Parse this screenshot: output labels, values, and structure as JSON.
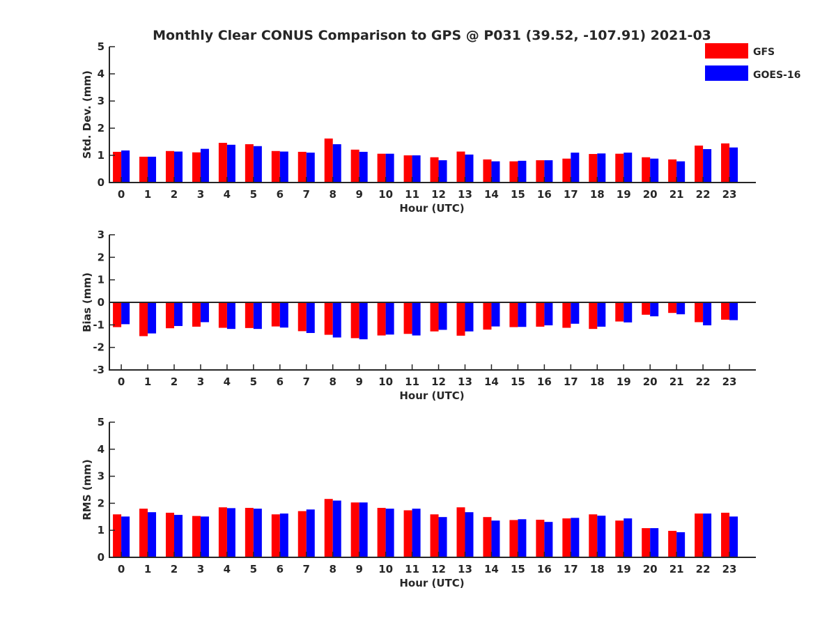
{
  "title": "Monthly Clear CONUS Comparison to GPS @ P031 (39.52, -107.91) 2021-03",
  "legend": [
    {
      "name": "GFS",
      "color": "#ff0000"
    },
    {
      "name": "GOES-16",
      "color": "#0000ff"
    }
  ],
  "colors": {
    "gfs": "#ff0000",
    "goes16": "#0000ff",
    "axis": "#262626"
  },
  "chart_data": [
    {
      "type": "bar",
      "ylabel": "Std. Dev. (mm)",
      "xlabel": "Hour (UTC)",
      "ylim": [
        0,
        5
      ],
      "yticks": [
        0,
        1,
        2,
        3,
        4,
        5
      ],
      "zero_line": false,
      "legend": "top-right",
      "categories": [
        "0",
        "1",
        "2",
        "3",
        "4",
        "5",
        "6",
        "7",
        "8",
        "9",
        "10",
        "11",
        "12",
        "13",
        "14",
        "15",
        "16",
        "17",
        "18",
        "19",
        "20",
        "21",
        "22",
        "23"
      ],
      "series": [
        {
          "name": "GFS",
          "values": [
            1.13,
            0.95,
            1.16,
            1.11,
            1.46,
            1.41,
            1.16,
            1.13,
            1.62,
            1.21,
            1.06,
            1.0,
            0.93,
            1.14,
            0.85,
            0.78,
            0.82,
            0.88,
            1.05,
            1.06,
            0.93,
            0.85,
            1.36,
            1.44
          ]
        },
        {
          "name": "GOES-16",
          "values": [
            1.18,
            0.95,
            1.14,
            1.24,
            1.39,
            1.34,
            1.14,
            1.1,
            1.41,
            1.13,
            1.06,
            1.0,
            0.82,
            1.03,
            0.78,
            0.8,
            0.82,
            1.1,
            1.07,
            1.1,
            0.88,
            0.78,
            1.23,
            1.29
          ]
        }
      ]
    },
    {
      "type": "bar",
      "ylabel": "Bias (mm)",
      "xlabel": "Hour (UTC)",
      "ylim": [
        -3,
        3
      ],
      "yticks": [
        -3,
        -2,
        -1,
        0,
        1,
        2,
        3
      ],
      "zero_line": true,
      "categories": [
        "0",
        "1",
        "2",
        "3",
        "4",
        "5",
        "6",
        "7",
        "8",
        "9",
        "10",
        "11",
        "12",
        "13",
        "14",
        "15",
        "16",
        "17",
        "18",
        "19",
        "20",
        "21",
        "22",
        "23"
      ],
      "series": [
        {
          "name": "GFS",
          "values": [
            -1.1,
            -1.5,
            -1.15,
            -1.08,
            -1.13,
            -1.14,
            -1.07,
            -1.28,
            -1.44,
            -1.59,
            -1.47,
            -1.4,
            -1.29,
            -1.48,
            -1.21,
            -1.1,
            -1.08,
            -1.13,
            -1.18,
            -0.85,
            -0.55,
            -0.47,
            -0.88,
            -0.77
          ]
        },
        {
          "name": "GOES-16",
          "values": [
            -0.97,
            -1.38,
            -1.05,
            -0.88,
            -1.18,
            -1.18,
            -1.12,
            -1.36,
            -1.56,
            -1.64,
            -1.43,
            -1.47,
            -1.22,
            -1.29,
            -1.07,
            -1.09,
            -1.02,
            -0.95,
            -1.08,
            -0.89,
            -0.62,
            -0.53,
            -1.02,
            -0.79
          ]
        }
      ]
    },
    {
      "type": "bar",
      "ylabel": "RMS (mm)",
      "xlabel": "Hour (UTC)",
      "ylim": [
        0,
        5
      ],
      "yticks": [
        0,
        1,
        2,
        3,
        4,
        5
      ],
      "zero_line": false,
      "categories": [
        "0",
        "1",
        "2",
        "3",
        "4",
        "5",
        "6",
        "7",
        "8",
        "9",
        "10",
        "11",
        "12",
        "13",
        "14",
        "15",
        "16",
        "17",
        "18",
        "19",
        "20",
        "21",
        "22",
        "23"
      ],
      "series": [
        {
          "name": "GFS",
          "values": [
            1.59,
            1.8,
            1.65,
            1.53,
            1.85,
            1.83,
            1.59,
            1.71,
            2.16,
            2.03,
            1.83,
            1.74,
            1.59,
            1.85,
            1.49,
            1.38,
            1.39,
            1.44,
            1.59,
            1.36,
            1.08,
            0.98,
            1.62,
            1.65
          ]
        },
        {
          "name": "GOES-16",
          "values": [
            1.51,
            1.67,
            1.57,
            1.51,
            1.82,
            1.8,
            1.62,
            1.77,
            2.1,
            2.03,
            1.8,
            1.8,
            1.49,
            1.67,
            1.36,
            1.41,
            1.31,
            1.46,
            1.54,
            1.44,
            1.08,
            0.93,
            1.62,
            1.51
          ]
        }
      ]
    }
  ]
}
